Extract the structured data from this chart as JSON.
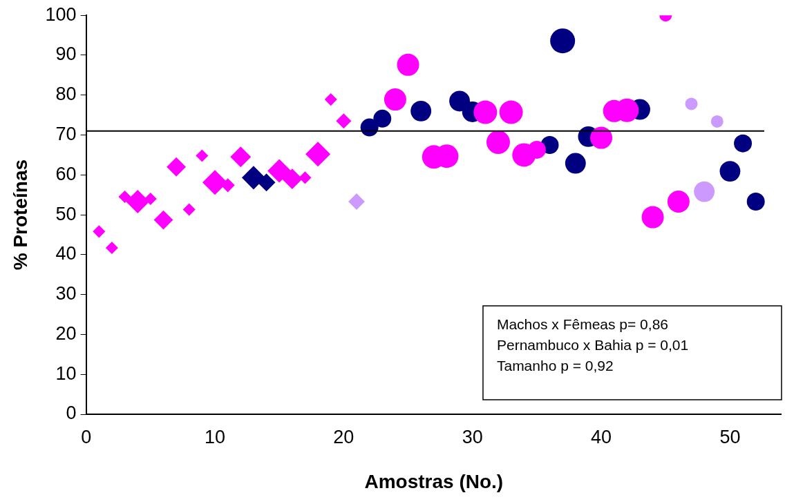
{
  "chart_data": {
    "type": "bubble",
    "xlabel": "Amostras (No.)",
    "ylabel": "% Proteínas",
    "xlim": [
      0,
      54
    ],
    "xticks": [
      0,
      10,
      20,
      30,
      40,
      50
    ],
    "ylim": [
      0,
      100
    ],
    "yticks": [
      0,
      10,
      20,
      30,
      40,
      50,
      60,
      70,
      80,
      90,
      100
    ],
    "grid": false,
    "legend": false,
    "ref_lines": [
      {
        "axis": "y",
        "value": 71,
        "color": "#000000"
      }
    ],
    "annotations": [
      "Machos x Fêmeas p= 0,86",
      "Pernambuco x Bahia p = 0,01",
      "Tamanho p = 0,92"
    ],
    "series": [
      {
        "color": "#ff00ff",
        "marker": "diamond",
        "x": [
          1,
          2,
          3,
          4,
          5,
          6,
          7,
          8,
          9,
          10,
          11,
          12,
          15,
          16,
          17,
          18,
          19,
          20
        ],
        "values": [
          45.8,
          41.7,
          54.5,
          53.3,
          54.0,
          48.7,
          62.0,
          51.3,
          64.8,
          58.1,
          57.4,
          64.5,
          61.0,
          59.0,
          59.3,
          65.2,
          78.9,
          73.5
        ],
        "sizes": [
          0.16,
          0.16,
          0.16,
          0.57,
          0.16,
          0.38,
          0.38,
          0.16,
          0.16,
          0.64,
          0.2,
          0.44,
          0.57,
          0.44,
          0.16,
          0.64,
          0.16,
          0.24
        ]
      },
      {
        "color": "#000080",
        "marker": "diamond",
        "x": [
          13,
          14
        ],
        "values": [
          59.3,
          58.1
        ],
        "sizes": [
          0.57,
          0.33
        ]
      },
      {
        "color": "#cc99ff",
        "marker": "diamond",
        "x": [
          21
        ],
        "values": [
          53.3
        ],
        "sizes": [
          0.28
        ]
      },
      {
        "color": "#ff00ff",
        "marker": "circle",
        "x": [
          24,
          25,
          27,
          28,
          31,
          32,
          33,
          34,
          35,
          40,
          41,
          42,
          44,
          45,
          46
        ],
        "values": [
          78.9,
          87.6,
          64.5,
          64.7,
          75.7,
          68.2,
          75.7,
          65.0,
          66.3,
          69.3,
          76.0,
          76.2,
          49.4,
          100,
          53.3
        ],
        "sizes": [
          0.79,
          0.79,
          0.89,
          0.89,
          0.89,
          0.89,
          0.89,
          0.89,
          0.52,
          0.79,
          0.79,
          0.89,
          0.79,
          0.25,
          0.79
        ]
      },
      {
        "color": "#000080",
        "marker": "circle",
        "x": [
          22,
          23,
          26,
          29,
          30,
          36,
          37,
          38,
          39,
          43,
          50,
          51,
          52
        ],
        "values": [
          71.9,
          74.1,
          76.0,
          78.5,
          75.8,
          67.5,
          93.6,
          62.9,
          69.6,
          76.4,
          60.9,
          67.9,
          53.3
        ],
        "sizes": [
          0.52,
          0.52,
          0.69,
          0.69,
          0.69,
          0.52,
          1,
          0.69,
          0.69,
          0.69,
          0.69,
          0.52,
          0.52
        ]
      },
      {
        "color": "#cc99ff",
        "marker": "circle",
        "x": [
          47,
          48,
          49
        ],
        "values": [
          77.8,
          55.8,
          73.4
        ],
        "sizes": [
          0.25,
          0.69,
          0.25
        ]
      }
    ]
  }
}
